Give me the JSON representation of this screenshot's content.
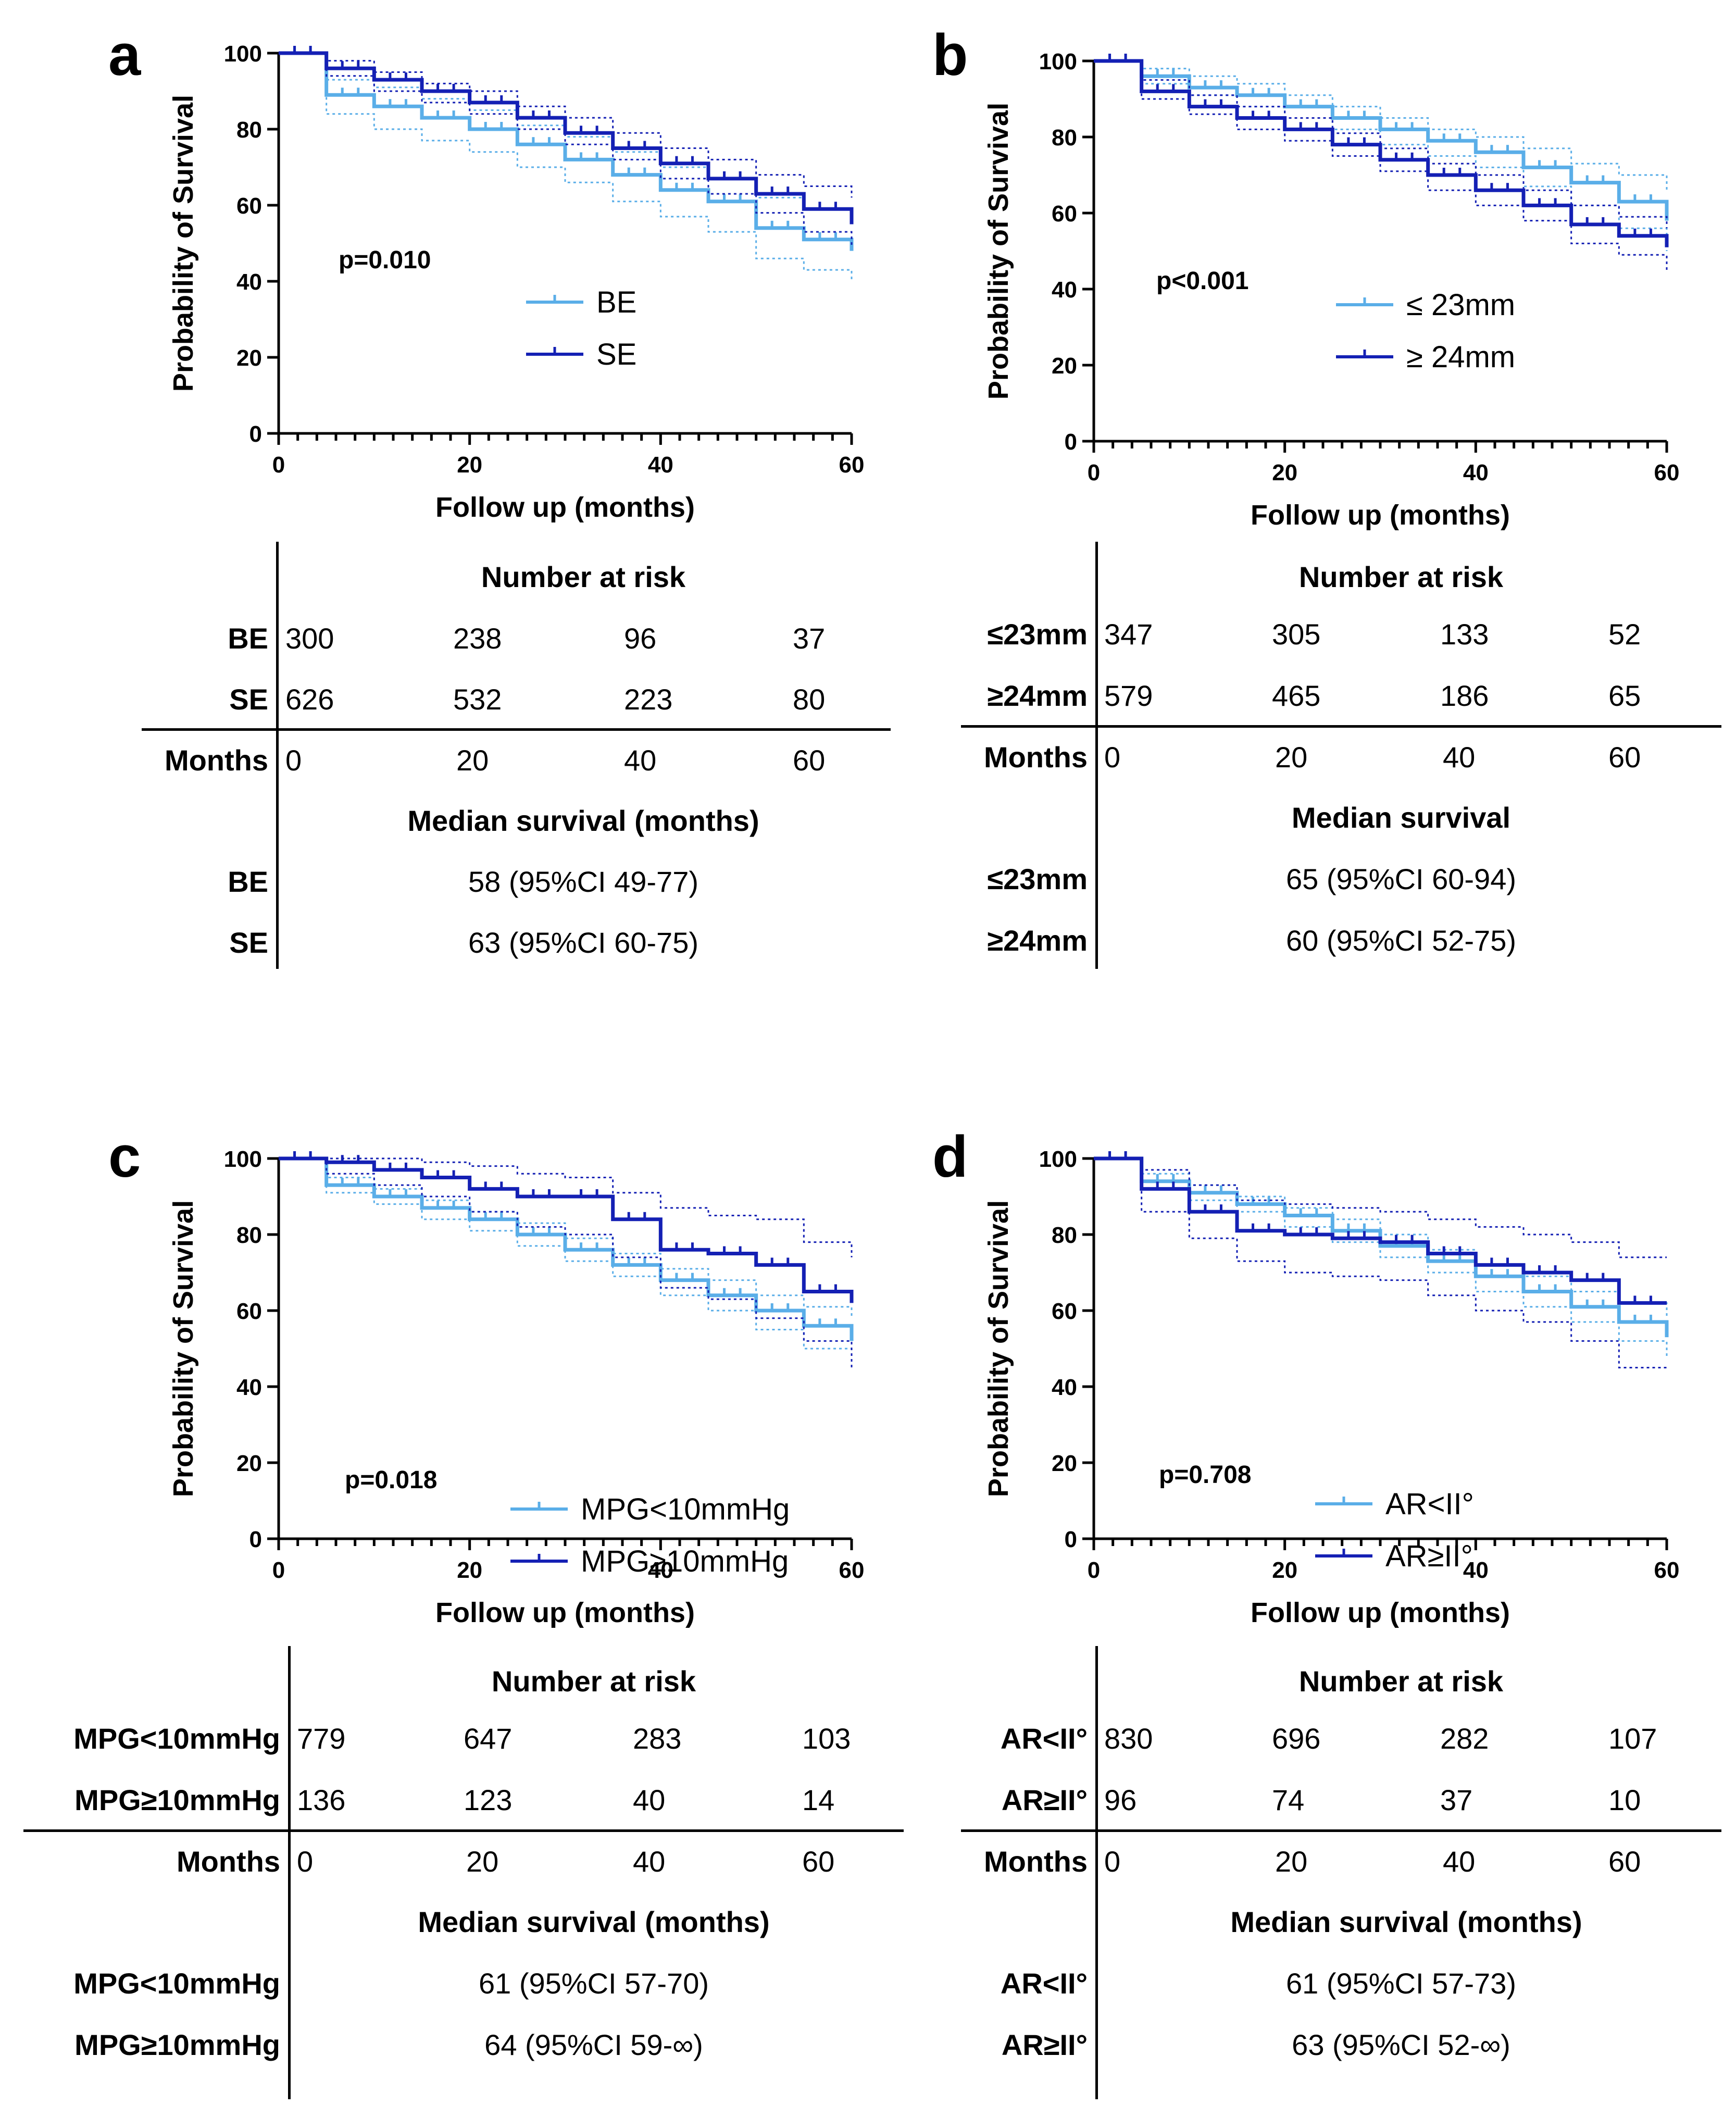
{
  "common": {
    "ylabel": "Probability of Survival",
    "xlabel": "Follow up (months)",
    "risk_title": "Number at risk",
    "months_label": "Months",
    "colors": {
      "light": "#5aaee8",
      "dark": "#1420b4"
    }
  },
  "panels": [
    {
      "letter": "a",
      "pvalue": "p=0.010",
      "median_title": "Median survival (months)",
      "groups": [
        {
          "name": "BE",
          "legend": "BE",
          "risk": [
            "300",
            "238",
            "96",
            "37"
          ],
          "median": "58 (95%CI 49-77)"
        },
        {
          "name": "SE",
          "legend": "SE",
          "risk": [
            "626",
            "532",
            "223",
            "80"
          ],
          "median": "63 (95%CI 60-75)"
        }
      ],
      "months": [
        "0",
        "20",
        "40",
        "60"
      ]
    },
    {
      "letter": "b",
      "pvalue": "p<0.001",
      "median_title": "Median survival",
      "groups": [
        {
          "name": "≤23mm",
          "legend": "≤ 23mm",
          "risk": [
            "347",
            "305",
            "133",
            "52"
          ],
          "median": "65 (95%CI 60-94)"
        },
        {
          "name": "≥24mm",
          "legend": "≥ 24mm",
          "risk": [
            "579",
            "465",
            "186",
            "65"
          ],
          "median": "60 (95%CI 52-75)"
        }
      ],
      "months": [
        "0",
        "20",
        "40",
        "60"
      ]
    },
    {
      "letter": "c",
      "pvalue": "p=0.018",
      "median_title": "Median survival (months)",
      "groups": [
        {
          "name": "MPG<10mmHg",
          "legend": "MPG<10mmHg",
          "risk": [
            "779",
            "647",
            "283",
            "103"
          ],
          "median": "61 (95%CI 57-70)"
        },
        {
          "name": "MPG≥10mmHg",
          "legend": "MPG≥10mmHg",
          "risk": [
            "136",
            "123",
            "40",
            "14"
          ],
          "median": "64 (95%CI 59-∞)"
        }
      ],
      "months": [
        "0",
        "20",
        "40",
        "60"
      ]
    },
    {
      "letter": "d",
      "pvalue": "p=0.708",
      "median_title": "Median survival (months)",
      "groups": [
        {
          "name": "AR<II°",
          "legend": "AR<II°",
          "risk": [
            "830",
            "696",
            "282",
            "107"
          ],
          "median": "61 (95%CI 57-73)"
        },
        {
          "name": "AR≥II°",
          "legend": "AR≥II°",
          "risk": [
            "96",
            "74",
            "37",
            "10"
          ],
          "median": "63 (95%CI 52-∞)"
        }
      ],
      "months": [
        "0",
        "20",
        "40",
        "60"
      ]
    }
  ],
  "chart_data": [
    {
      "type": "line",
      "title": "a",
      "xlabel": "Follow up (months)",
      "ylabel": "Probability of Survival",
      "xlim": [
        0,
        60
      ],
      "ylim": [
        0,
        100
      ],
      "xticks": [
        "0",
        "20",
        "40",
        "60"
      ],
      "yticks": [
        "0",
        "20",
        "40",
        "60",
        "80",
        "100"
      ],
      "series": [
        {
          "name": "BE",
          "color": "#5aaee8",
          "x": [
            0,
            5,
            10,
            15,
            20,
            25,
            30,
            35,
            40,
            45,
            50,
            55,
            60
          ],
          "y": [
            100,
            89,
            86,
            83,
            80,
            76,
            72,
            68,
            64,
            61,
            54,
            51,
            48
          ],
          "ci_low": [
            100,
            84,
            80,
            77,
            74,
            70,
            66,
            61,
            57,
            53,
            46,
            43,
            40
          ],
          "ci_high": [
            100,
            93,
            91,
            88,
            85,
            81,
            78,
            74,
            70,
            67,
            62,
            59,
            56
          ]
        },
        {
          "name": "SE",
          "color": "#1420b4",
          "x": [
            0,
            5,
            10,
            15,
            20,
            25,
            30,
            35,
            40,
            45,
            50,
            55,
            60
          ],
          "y": [
            100,
            96,
            93,
            90,
            87,
            83,
            79,
            75,
            71,
            67,
            63,
            59,
            55
          ],
          "ci_low": [
            100,
            94,
            90,
            87,
            84,
            80,
            76,
            72,
            67,
            63,
            58,
            53,
            49
          ],
          "ci_high": [
            100,
            98,
            95,
            92,
            90,
            86,
            83,
            79,
            75,
            72,
            68,
            65,
            62
          ]
        }
      ]
    },
    {
      "type": "line",
      "title": "b",
      "xlabel": "Follow up (months)",
      "ylabel": "Probability of Survival",
      "xlim": [
        0,
        60
      ],
      "ylim": [
        0,
        100
      ],
      "xticks": [
        "0",
        "20",
        "40",
        "60"
      ],
      "yticks": [
        "0",
        "20",
        "40",
        "60",
        "80",
        "100"
      ],
      "series": [
        {
          "name": "≤ 23mm",
          "color": "#5aaee8",
          "x": [
            0,
            5,
            10,
            15,
            20,
            25,
            30,
            35,
            40,
            45,
            50,
            55,
            60
          ],
          "y": [
            100,
            96,
            93,
            91,
            88,
            85,
            82,
            79,
            76,
            72,
            68,
            63,
            58
          ],
          "ci_low": [
            100,
            94,
            91,
            88,
            85,
            82,
            78,
            75,
            72,
            67,
            62,
            56,
            50
          ],
          "ci_high": [
            100,
            98,
            96,
            94,
            91,
            88,
            85,
            82,
            80,
            77,
            73,
            70,
            66
          ]
        },
        {
          "name": "≥ 24mm",
          "color": "#1420b4",
          "x": [
            0,
            5,
            10,
            15,
            20,
            25,
            30,
            35,
            40,
            45,
            50,
            55,
            60
          ],
          "y": [
            100,
            92,
            88,
            85,
            82,
            78,
            74,
            70,
            66,
            62,
            57,
            54,
            51
          ],
          "ci_low": [
            100,
            90,
            86,
            82,
            79,
            75,
            71,
            66,
            62,
            58,
            52,
            49,
            45
          ],
          "ci_high": [
            100,
            95,
            91,
            88,
            85,
            81,
            77,
            73,
            70,
            66,
            62,
            59,
            56
          ]
        }
      ]
    },
    {
      "type": "line",
      "title": "c",
      "xlabel": "Follow up (months)",
      "ylabel": "Probability of Survival",
      "xlim": [
        0,
        60
      ],
      "ylim": [
        0,
        100
      ],
      "xticks": [
        "0",
        "20",
        "40",
        "60"
      ],
      "yticks": [
        "0",
        "20",
        "40",
        "60",
        "80",
        "100"
      ],
      "series": [
        {
          "name": "MPG<10mmHg",
          "color": "#5aaee8",
          "x": [
            0,
            5,
            10,
            15,
            20,
            25,
            30,
            35,
            40,
            45,
            50,
            55,
            60
          ],
          "y": [
            100,
            93,
            90,
            87,
            84,
            80,
            76,
            72,
            68,
            64,
            60,
            56,
            52
          ],
          "ci_low": [
            100,
            91,
            88,
            84,
            81,
            77,
            73,
            69,
            64,
            60,
            55,
            50,
            45
          ],
          "ci_high": [
            100,
            95,
            92,
            89,
            86,
            83,
            79,
            75,
            71,
            68,
            64,
            61,
            58
          ]
        },
        {
          "name": "MPG≥10mmHg",
          "color": "#1420b4",
          "x": [
            0,
            5,
            10,
            15,
            20,
            25,
            30,
            35,
            40,
            45,
            50,
            55,
            60
          ],
          "y": [
            100,
            99,
            97,
            95,
            92,
            90,
            90,
            84,
            76,
            75,
            72,
            65,
            62
          ],
          "ci_low": [
            100,
            96,
            93,
            90,
            86,
            82,
            80,
            74,
            66,
            63,
            58,
            52,
            45
          ],
          "ci_high": [
            100,
            100,
            100,
            99,
            98,
            96,
            95,
            91,
            87,
            85,
            84,
            78,
            74
          ]
        }
      ]
    },
    {
      "type": "line",
      "title": "d",
      "xlabel": "Follow up (months)",
      "ylabel": "Probability of Survival",
      "xlim": [
        0,
        60
      ],
      "ylim": [
        0,
        100
      ],
      "xticks": [
        "0",
        "20",
        "40",
        "60"
      ],
      "yticks": [
        "0",
        "20",
        "40",
        "60",
        "80",
        "100"
      ],
      "series": [
        {
          "name": "AR<II°",
          "color": "#5aaee8",
          "x": [
            0,
            5,
            10,
            15,
            20,
            25,
            30,
            35,
            40,
            45,
            50,
            55,
            60
          ],
          "y": [
            100,
            94,
            91,
            88,
            85,
            81,
            77,
            73,
            69,
            65,
            61,
            57,
            53
          ],
          "ci_low": [
            100,
            92,
            89,
            86,
            82,
            78,
            74,
            70,
            65,
            61,
            57,
            52,
            48
          ],
          "ci_high": [
            100,
            96,
            93,
            90,
            87,
            84,
            80,
            76,
            72,
            69,
            65,
            62,
            58
          ]
        },
        {
          "name": "AR≥II°",
          "color": "#1420b4",
          "x": [
            0,
            5,
            10,
            15,
            20,
            25,
            30,
            35,
            40,
            45,
            50,
            55,
            60
          ],
          "y": [
            100,
            92,
            86,
            81,
            80,
            79,
            78,
            75,
            72,
            70,
            68,
            62,
            62
          ],
          "ci_low": [
            100,
            86,
            79,
            73,
            70,
            69,
            68,
            64,
            60,
            57,
            52,
            45,
            45
          ],
          "ci_high": [
            100,
            97,
            93,
            89,
            88,
            87,
            86,
            84,
            82,
            80,
            78,
            74,
            74
          ]
        }
      ]
    }
  ]
}
